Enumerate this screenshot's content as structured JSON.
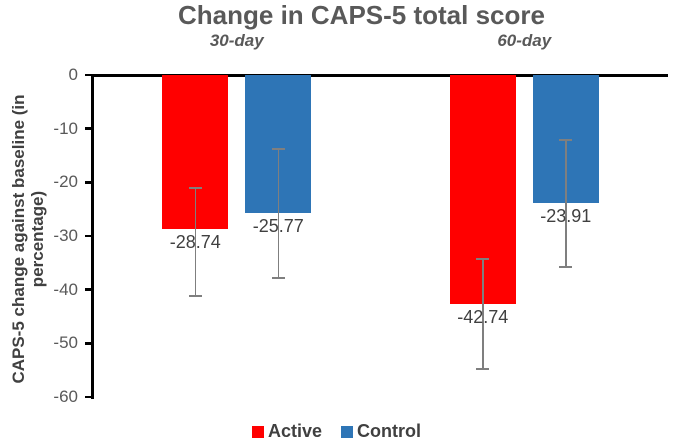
{
  "chart_data": {
    "type": "bar",
    "title": "Change in CAPS-5 total score",
    "ylabel": "CAPS-5 change against baseline (in percentage)",
    "ylabel_lines": [
      "CAPS-5 change against baseline (in",
      "percentage)"
    ],
    "xlabel": "",
    "categories": [
      "30-day",
      "60-day"
    ],
    "series": [
      {
        "name": "Active",
        "color": "#FF0000",
        "values": [
          -28.74,
          -42.74
        ],
        "labels": [
          "-28.74",
          "-42.74"
        ],
        "error_bars": [
          {
            "upper": -21.1,
            "lower": -41.2
          },
          {
            "upper": -34.2,
            "lower": -54.7
          }
        ]
      },
      {
        "name": "Control",
        "color": "#2E75B6",
        "values": [
          -25.77,
          -23.91
        ],
        "labels": [
          "-25.77",
          "-23.91"
        ],
        "error_bars": [
          {
            "upper": -13.8,
            "lower": -37.9
          },
          {
            "upper": -12.1,
            "lower": -35.7
          }
        ]
      }
    ],
    "ylim": [
      -60,
      0
    ],
    "yticks": [
      {
        "label": "0",
        "value": 0
      },
      {
        "label": "-10",
        "value": -10
      },
      {
        "label": "-20",
        "value": -20
      },
      {
        "label": "-30",
        "value": -30
      },
      {
        "label": "-40",
        "value": -40
      },
      {
        "label": "-50",
        "value": -50
      },
      {
        "label": "-60",
        "value": -60
      }
    ],
    "grid": false,
    "legend": {
      "position": "bottom",
      "entries": [
        {
          "label": "Active",
          "color": "#FF0000"
        },
        {
          "label": "Control",
          "color": "#2E75B6"
        }
      ]
    },
    "colors": {
      "error_bar": "#7F7F7F",
      "axis": "#000000",
      "background": "#FFFFFF"
    }
  }
}
